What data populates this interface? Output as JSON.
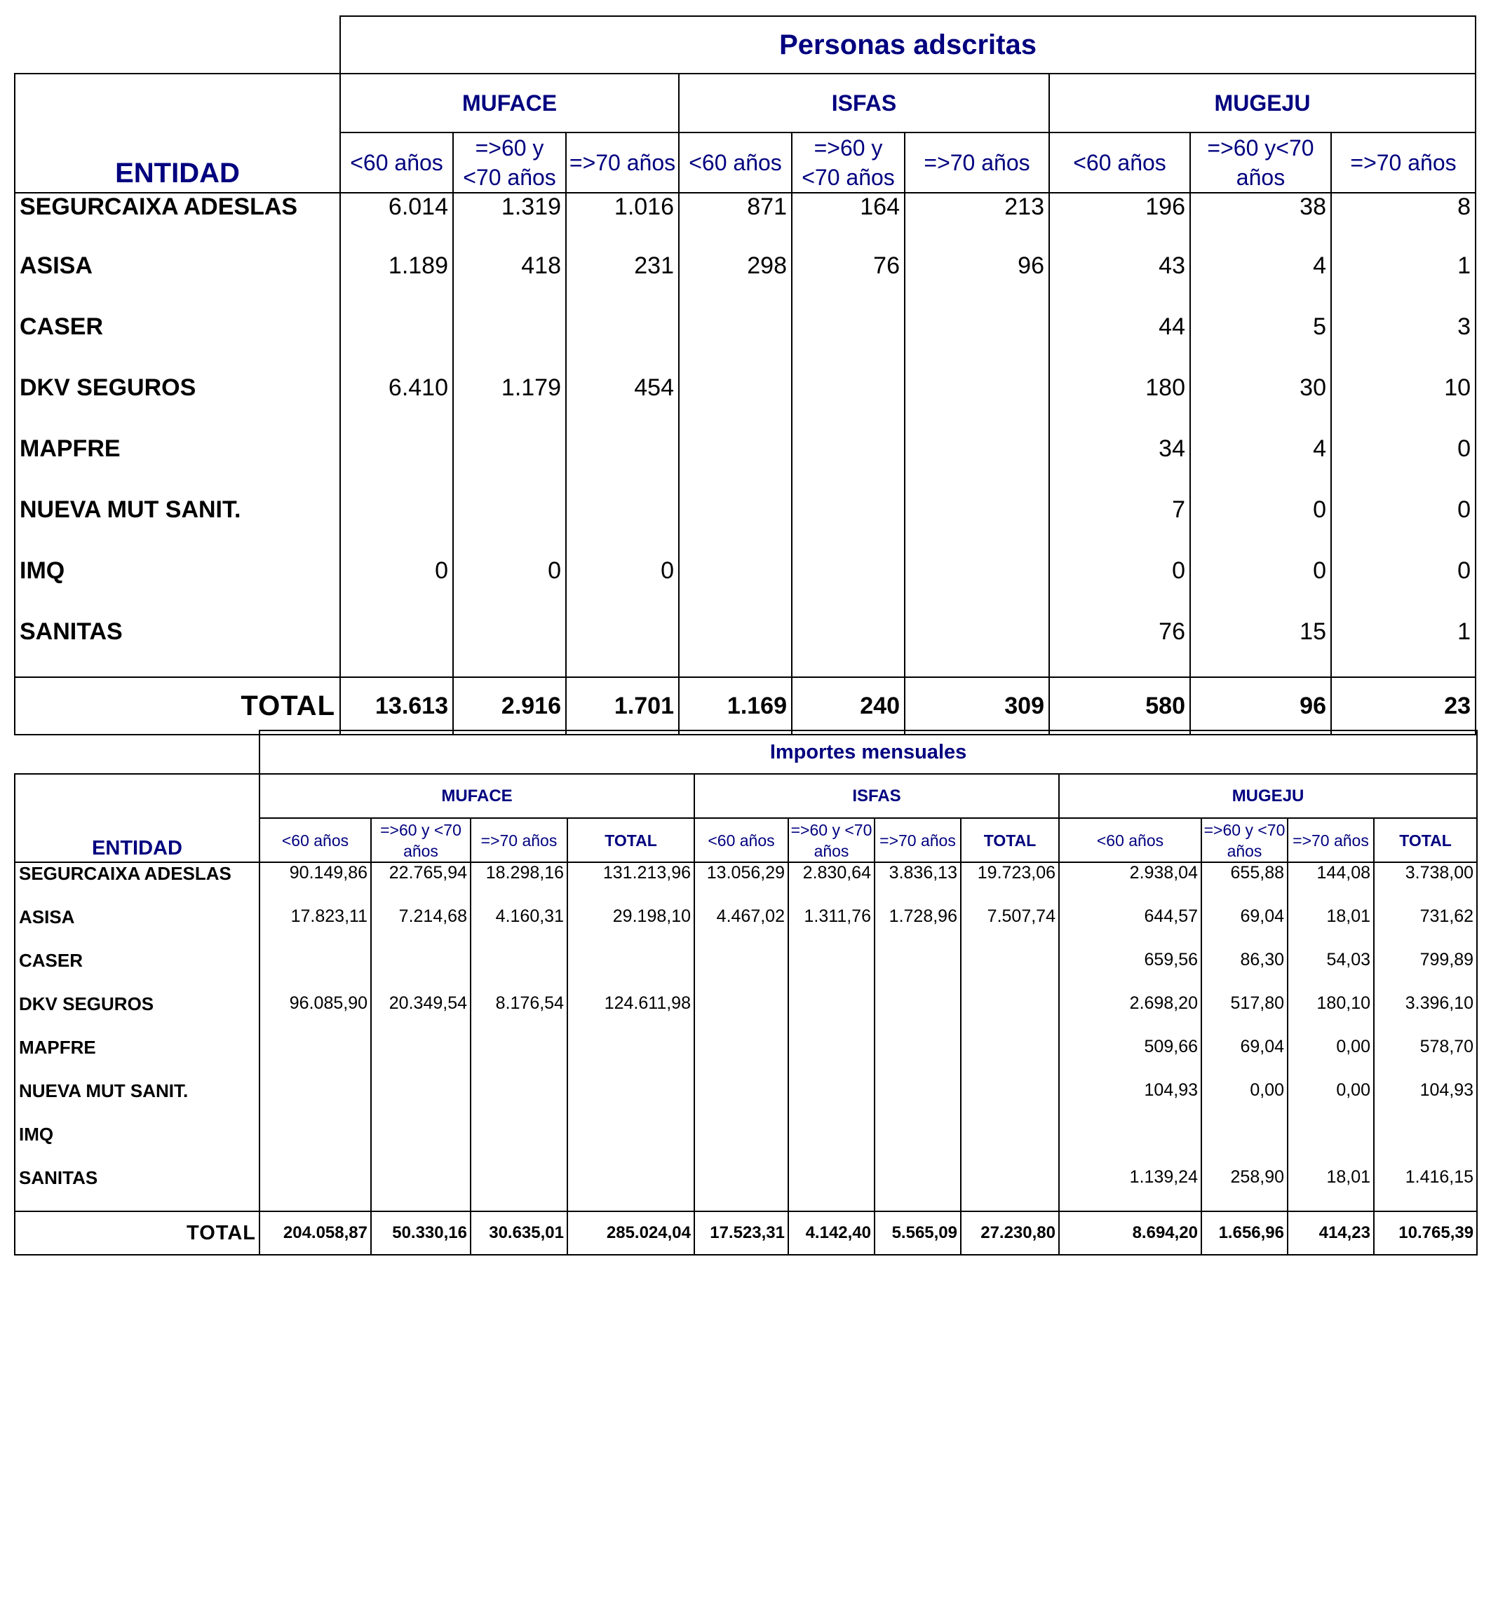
{
  "table1": {
    "title": "Personas adscritas",
    "entity_header": "ENTIDAD",
    "groups": [
      "MUFACE",
      "ISFAS",
      "MUGEJU"
    ],
    "subheaders": [
      "<60 años",
      "=>60 y <70 años",
      "=>70 años",
      "<60 años",
      "=>60 y <70 años",
      "=>70 años",
      "<60 años",
      "=>60 y<70 años",
      "=>70 años"
    ],
    "rows": [
      {
        "name": "SEGURCAIXA ADESLAS",
        "values": [
          "6.014",
          "1.319",
          "1.016",
          "871",
          "164",
          "213",
          "196",
          "38",
          "8"
        ]
      },
      {
        "name": "ASISA",
        "values": [
          "1.189",
          "418",
          "231",
          "298",
          "76",
          "96",
          "43",
          "4",
          "1"
        ]
      },
      {
        "name": "CASER",
        "values": [
          "",
          "",
          "",
          "",
          "",
          "",
          "44",
          "5",
          "3"
        ]
      },
      {
        "name": "DKV SEGUROS",
        "values": [
          "6.410",
          "1.179",
          "454",
          "",
          "",
          "",
          "180",
          "30",
          "10"
        ]
      },
      {
        "name": "MAPFRE",
        "values": [
          "",
          "",
          "",
          "",
          "",
          "",
          "34",
          "4",
          "0"
        ]
      },
      {
        "name": "NUEVA MUT SANIT.",
        "values": [
          "",
          "",
          "",
          "",
          "",
          "",
          "7",
          "0",
          "0"
        ]
      },
      {
        "name": "IMQ",
        "values": [
          "0",
          "0",
          "0",
          "",
          "",
          "",
          "0",
          "0",
          "0"
        ]
      },
      {
        "name": "SANITAS",
        "values": [
          "",
          "",
          "",
          "",
          "",
          "",
          "76",
          "15",
          "1"
        ]
      }
    ],
    "total": {
      "label": "TOTAL",
      "values": [
        "13.613",
        "2.916",
        "1.701",
        "1.169",
        "240",
        "309",
        "580",
        "96",
        "23"
      ]
    }
  },
  "table2": {
    "title": "Importes mensuales",
    "entity_header": "ENTIDAD",
    "groups": [
      "MUFACE",
      "ISFAS",
      "MUGEJU"
    ],
    "subheaders": [
      "<60 años",
      "=>60 y <70 años",
      "=>70 años",
      "TOTAL",
      "<60 años",
      "=>60 y <70 años",
      "=>70 años",
      "TOTAL",
      "<60 años",
      "=>60 y <70 años",
      "=>70 años",
      "TOTAL"
    ],
    "rows": [
      {
        "name": "SEGURCAIXA ADESLAS",
        "values": [
          "90.149,86",
          "22.765,94",
          "18.298,16",
          "131.213,96",
          "13.056,29",
          "2.830,64",
          "3.836,13",
          "19.723,06",
          "2.938,04",
          "655,88",
          "144,08",
          "3.738,00"
        ]
      },
      {
        "name": "ASISA",
        "values": [
          "17.823,11",
          "7.214,68",
          "4.160,31",
          "29.198,10",
          "4.467,02",
          "1.311,76",
          "1.728,96",
          "7.507,74",
          "644,57",
          "69,04",
          "18,01",
          "731,62"
        ]
      },
      {
        "name": "CASER",
        "values": [
          "",
          "",
          "",
          "",
          "",
          "",
          "",
          "",
          "659,56",
          "86,30",
          "54,03",
          "799,89"
        ]
      },
      {
        "name": "DKV SEGUROS",
        "values": [
          "96.085,90",
          "20.349,54",
          "8.176,54",
          "124.611,98",
          "",
          "",
          "",
          "",
          "2.698,20",
          "517,80",
          "180,10",
          "3.396,10"
        ]
      },
      {
        "name": "MAPFRE",
        "values": [
          "",
          "",
          "",
          "",
          "",
          "",
          "",
          "",
          "509,66",
          "69,04",
          "0,00",
          "578,70"
        ]
      },
      {
        "name": "NUEVA MUT SANIT.",
        "values": [
          "",
          "",
          "",
          "",
          "",
          "",
          "",
          "",
          "104,93",
          "0,00",
          "0,00",
          "104,93"
        ]
      },
      {
        "name": "IMQ",
        "values": [
          "",
          "",
          "",
          "",
          "",
          "",
          "",
          "",
          "",
          "",
          "",
          ""
        ]
      },
      {
        "name": "SANITAS",
        "values": [
          "",
          "",
          "",
          "",
          "",
          "",
          "",
          "",
          "1.139,24",
          "258,90",
          "18,01",
          "1.416,15"
        ]
      }
    ],
    "total": {
      "label": "TOTAL",
      "values": [
        "204.058,87",
        "50.330,16",
        "30.635,01",
        "285.024,04",
        "17.523,31",
        "4.142,40",
        "5.565,09",
        "27.230,80",
        "8.694,20",
        "1.656,96",
        "414,23",
        "10.765,39"
      ]
    }
  }
}
